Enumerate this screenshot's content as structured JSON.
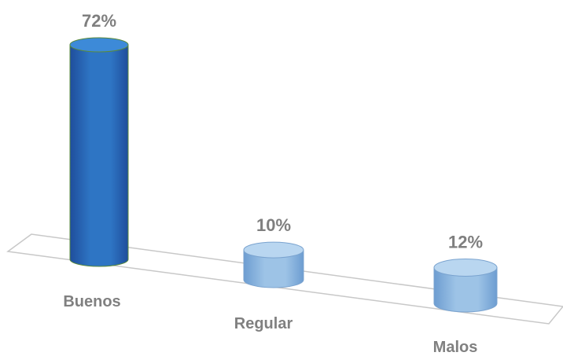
{
  "chart_data": {
    "type": "bar",
    "style": "3d-cylinder",
    "categories": [
      "Buenos",
      "Regular",
      "Malos"
    ],
    "values": [
      72,
      10,
      12
    ],
    "value_labels": [
      "72%",
      "10%",
      "12%"
    ],
    "unit": "%",
    "ylim": [
      0,
      72
    ],
    "grid": false,
    "legend": "none",
    "colors": {
      "bars": [
        "#2e75c4",
        "#9dc3e6",
        "#9dc3e6"
      ],
      "bar_shade": [
        "#1f4e9c",
        "#6d9dd1",
        "#6d9dd1"
      ],
      "bar_top": [
        "#3d8ad8",
        "#b9d6f0",
        "#b9d6f0"
      ],
      "bar_outline": [
        "#5a8a3c",
        "#7aa3cf",
        "#7aa3cf"
      ],
      "floor_outline": "#c8c8c8",
      "label_text": "#7f7f7f"
    }
  }
}
